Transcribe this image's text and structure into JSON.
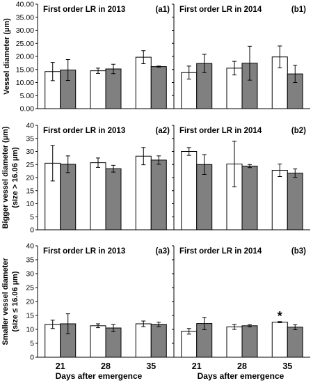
{
  "chart_data": [
    {
      "type": "bar",
      "panel_id": "(a1)",
      "title": "First order LR in 2013",
      "ylabel": "Vessel diameter (µm)",
      "ylim": [
        0,
        40
      ],
      "yticks": [
        "0.00",
        "5.00",
        "10.00",
        "15.00",
        "20.00",
        "25.00",
        "30.00",
        "35.00",
        "40.00"
      ],
      "categories": [
        "21",
        "28",
        "35"
      ],
      "series": [
        {
          "fill": "#ffffff",
          "values": [
            14.2,
            14.5,
            19.7
          ],
          "errors": [
            3.5,
            1.0,
            2.5
          ]
        },
        {
          "fill": "#808080",
          "values": [
            14.8,
            15.2,
            16.1
          ],
          "errors": [
            4.0,
            1.8,
            0.2
          ]
        }
      ],
      "annotations": []
    },
    {
      "type": "bar",
      "panel_id": "(b1)",
      "title": "First order LR in 2014",
      "ylim": [
        0,
        40
      ],
      "categories": [
        "21",
        "28",
        "35"
      ],
      "series": [
        {
          "fill": "#ffffff",
          "values": [
            13.8,
            15.5,
            19.8
          ],
          "errors": [
            2.5,
            2.6,
            4.2
          ]
        },
        {
          "fill": "#808080",
          "values": [
            17.3,
            17.4,
            13.3
          ],
          "errors": [
            3.5,
            6.5,
            3.3
          ]
        }
      ],
      "annotations": []
    },
    {
      "type": "bar",
      "panel_id": "(a2)",
      "title": "First order LR in 2013",
      "ylabel_lines": [
        "Bigger vessel diameter (µm)",
        "(size > 16.06 µm)"
      ],
      "ylim": [
        0,
        40
      ],
      "yticks": [
        "0",
        "5",
        "10",
        "15",
        "20",
        "25",
        "30",
        "35",
        "40"
      ],
      "categories": [
        "21",
        "28",
        "35"
      ],
      "series": [
        {
          "fill": "#ffffff",
          "values": [
            25.5,
            25.7,
            28.2
          ],
          "errors": [
            6.8,
            1.8,
            3.3
          ]
        },
        {
          "fill": "#808080",
          "values": [
            25.1,
            23.4,
            26.7
          ],
          "errors": [
            3.2,
            1.3,
            1.6
          ]
        }
      ],
      "annotations": []
    },
    {
      "type": "bar",
      "panel_id": "(b2)",
      "title": "First order LR in 2014",
      "ylim": [
        0,
        40
      ],
      "categories": [
        "21",
        "28",
        "35"
      ],
      "series": [
        {
          "fill": "#ffffff",
          "values": [
            30.0,
            25.2,
            22.8
          ],
          "errors": [
            1.5,
            8.7,
            2.4
          ]
        },
        {
          "fill": "#808080",
          "values": [
            25.0,
            24.4,
            21.7
          ],
          "errors": [
            3.8,
            0.6,
            1.6
          ]
        }
      ],
      "annotations": []
    },
    {
      "type": "bar",
      "panel_id": "(a3)",
      "title": "First order LR in 2013",
      "ylabel_lines": [
        "Smaller vessel diameter",
        "(size ≤ 16.06 µm)"
      ],
      "ylim": [
        0,
        40
      ],
      "yticks": [
        "0",
        "5",
        "10",
        "15",
        "20",
        "25",
        "30",
        "35",
        "40"
      ],
      "categories": [
        "21",
        "28",
        "35"
      ],
      "series": [
        {
          "fill": "#ffffff",
          "values": [
            11.8,
            11.3,
            12.0
          ],
          "errors": [
            1.5,
            0.7,
            1.0
          ]
        },
        {
          "fill": "#808080",
          "values": [
            12.0,
            10.5,
            11.8
          ],
          "errors": [
            3.6,
            1.3,
            0.8
          ]
        }
      ],
      "annotations": []
    },
    {
      "type": "bar",
      "panel_id": "(b3)",
      "title": "First order LR in 2014",
      "ylim": [
        0,
        40
      ],
      "categories": [
        "21",
        "28",
        "35"
      ],
      "series": [
        {
          "fill": "#ffffff",
          "values": [
            9.3,
            10.9,
            12.6
          ],
          "errors": [
            1.0,
            0.9,
            0.2
          ]
        },
        {
          "fill": "#808080",
          "values": [
            12.1,
            11.3,
            10.8
          ],
          "errors": [
            2.2,
            0.4,
            0.9
          ]
        }
      ],
      "annotations": [
        {
          "text": "*",
          "category": "35",
          "series": 0
        }
      ]
    }
  ],
  "x_axis": {
    "tick_labels": [
      "21",
      "28",
      "35"
    ],
    "label_left": "Days after emergence",
    "label_right": "Days after emergence"
  }
}
